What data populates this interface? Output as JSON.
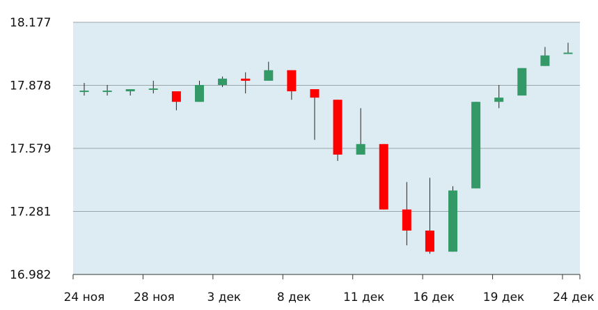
{
  "chart_data": {
    "type": "candlestick",
    "y_ticks": [
      "18.177",
      "17.878",
      "17.579",
      "17.281",
      "16.982"
    ],
    "ylim": [
      16.982,
      18.177
    ],
    "x_tick_labels": [
      "24 ноя",
      "28 ноя",
      "3 дек",
      "8 дек",
      "11 дек",
      "16 дек",
      "19 дек",
      "24 дек"
    ],
    "up_color": "#339966",
    "down_color": "#ff0000",
    "grid": true,
    "candles": [
      {
        "open": 17.85,
        "close": 17.85,
        "high": 17.89,
        "low": 17.83
      },
      {
        "open": 17.85,
        "close": 17.85,
        "high": 17.88,
        "low": 17.83
      },
      {
        "open": 17.85,
        "close": 17.86,
        "high": 17.86,
        "low": 17.83
      },
      {
        "open": 17.86,
        "close": 17.86,
        "high": 17.9,
        "low": 17.84
      },
      {
        "open": 17.85,
        "close": 17.8,
        "high": 17.85,
        "low": 17.76
      },
      {
        "open": 17.8,
        "close": 17.88,
        "high": 17.9,
        "low": 17.8
      },
      {
        "open": 17.88,
        "close": 17.91,
        "high": 17.92,
        "low": 17.87
      },
      {
        "open": 17.91,
        "close": 17.9,
        "high": 17.94,
        "low": 17.84
      },
      {
        "open": 17.9,
        "close": 17.95,
        "high": 17.99,
        "low": 17.9
      },
      {
        "open": 17.95,
        "close": 17.85,
        "high": 17.95,
        "low": 17.81
      },
      {
        "open": 17.86,
        "close": 17.82,
        "high": 17.86,
        "low": 17.62
      },
      {
        "open": 17.81,
        "close": 17.55,
        "high": 17.81,
        "low": 17.52
      },
      {
        "open": 17.55,
        "close": 17.6,
        "high": 17.77,
        "low": 17.55
      },
      {
        "open": 17.6,
        "close": 17.29,
        "high": 17.6,
        "low": 17.29
      },
      {
        "open": 17.29,
        "close": 17.19,
        "high": 17.42,
        "low": 17.12
      },
      {
        "open": 17.19,
        "close": 17.09,
        "high": 17.44,
        "low": 17.08
      },
      {
        "open": 17.09,
        "close": 17.38,
        "high": 17.4,
        "low": 17.09
      },
      {
        "open": 17.39,
        "close": 17.8,
        "high": 17.8,
        "low": 17.39
      },
      {
        "open": 17.8,
        "close": 17.82,
        "high": 17.88,
        "low": 17.77
      },
      {
        "open": 17.83,
        "close": 17.96,
        "high": 17.96,
        "low": 17.83
      },
      {
        "open": 17.97,
        "close": 18.02,
        "high": 18.06,
        "low": 17.97
      },
      {
        "open": 18.03,
        "close": 18.03,
        "high": 18.08,
        "low": 18.03
      }
    ]
  }
}
